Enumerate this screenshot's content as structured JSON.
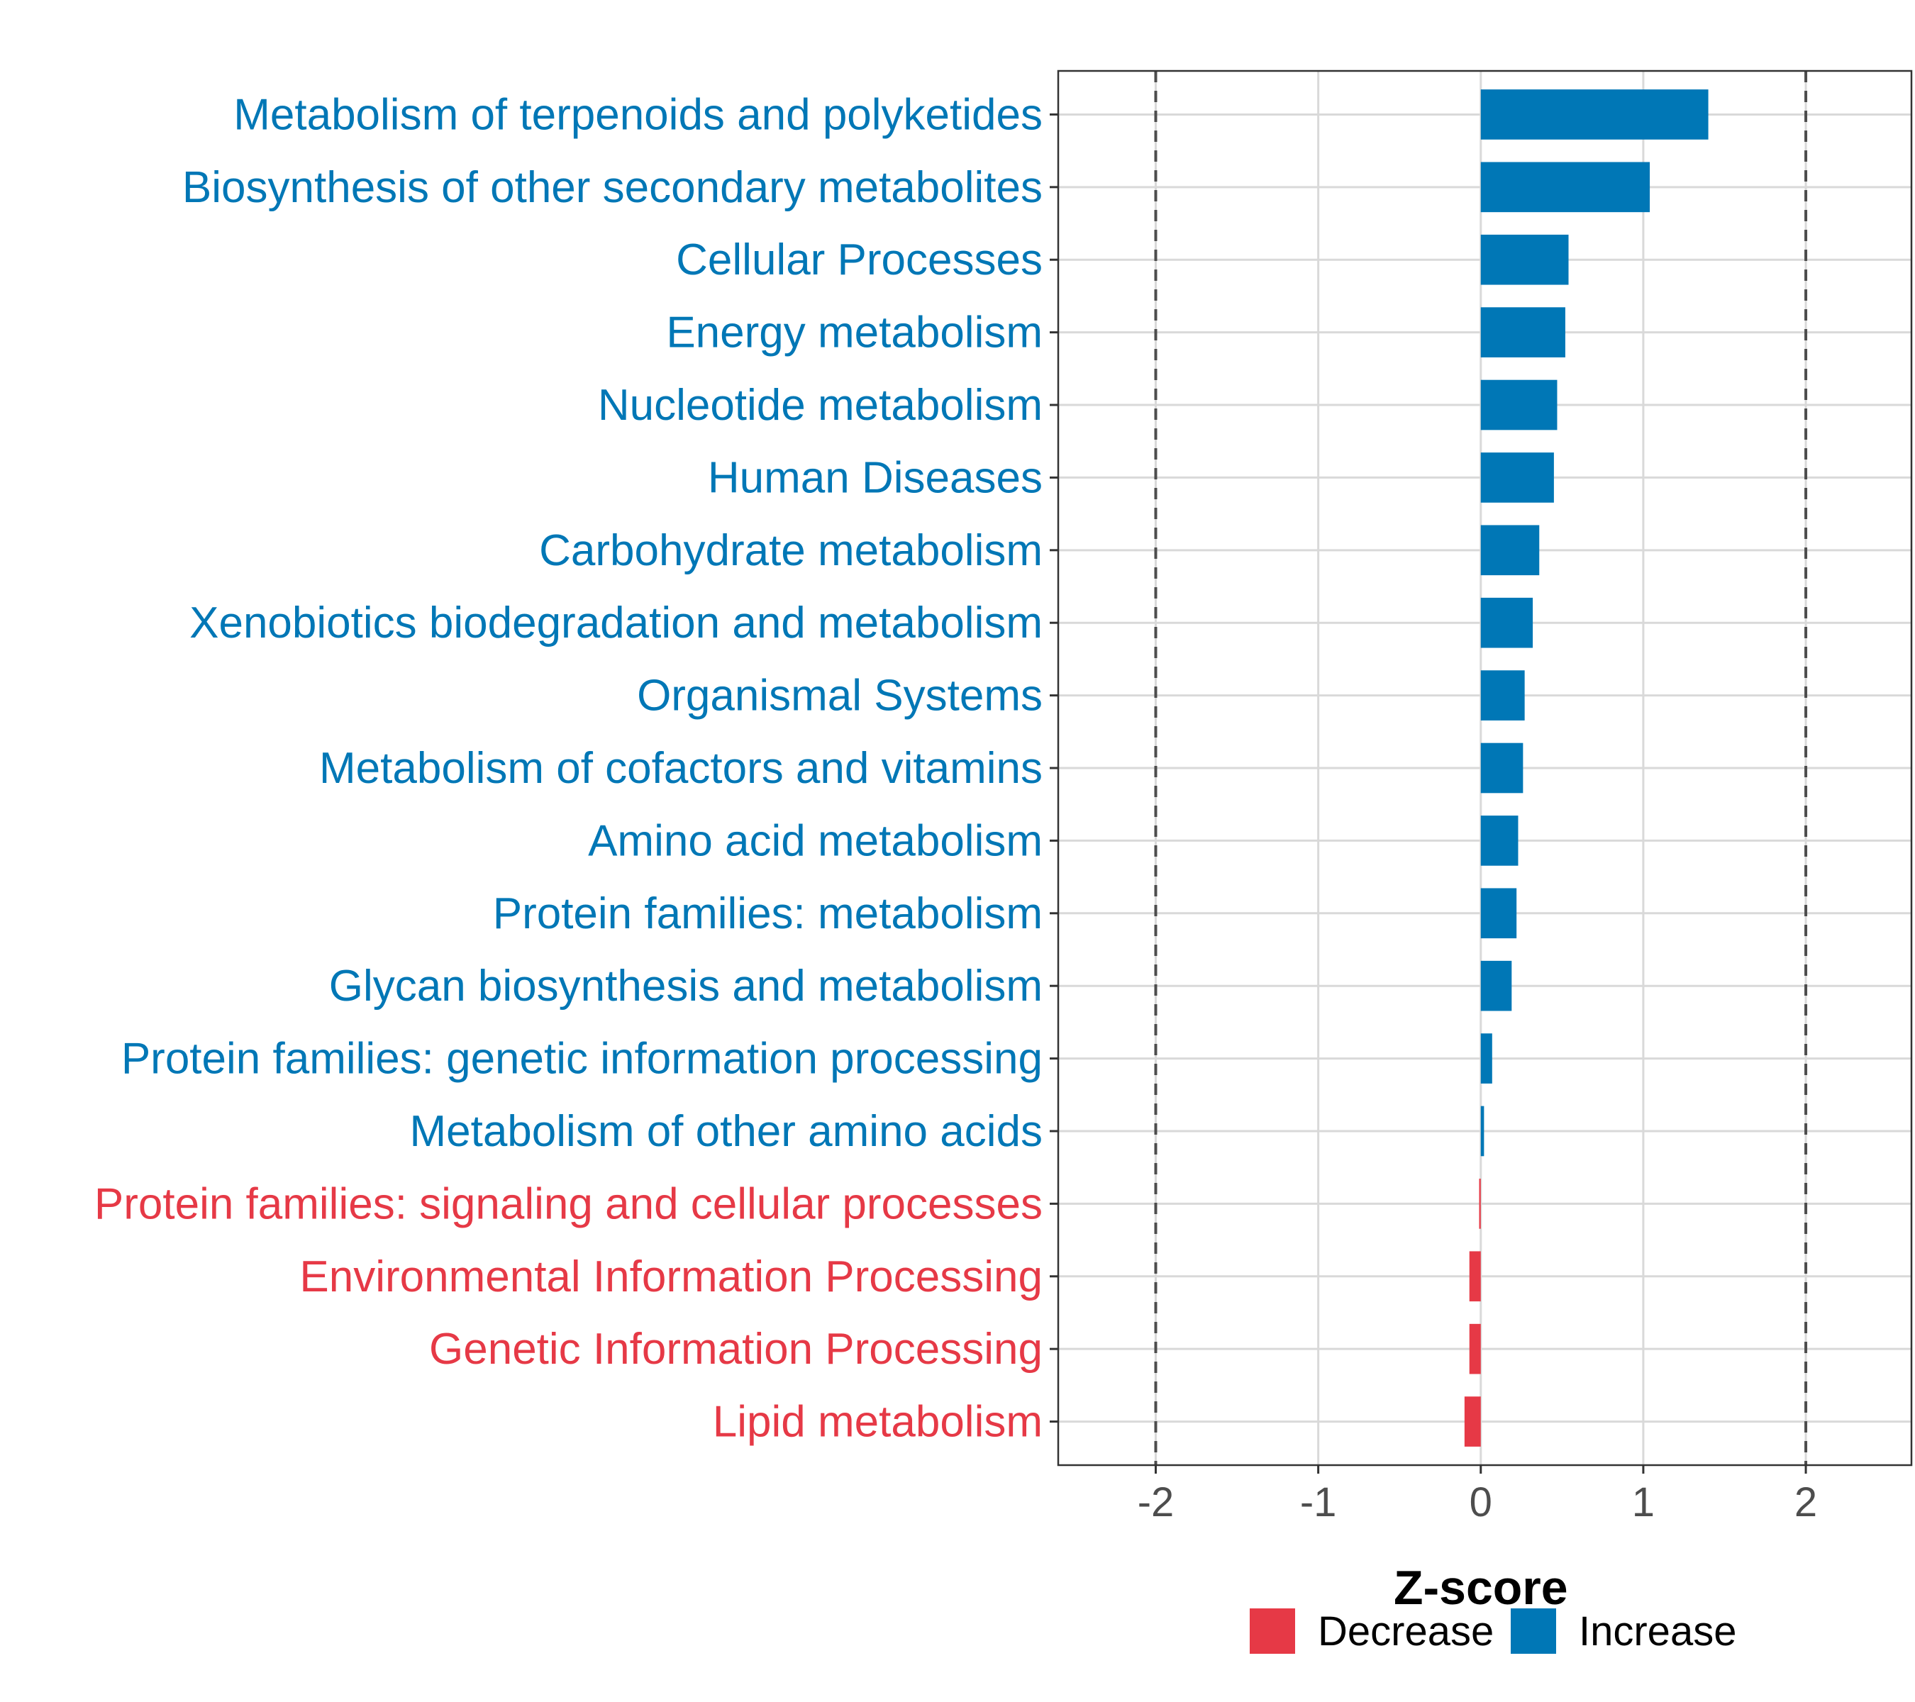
{
  "chart_data": {
    "type": "bar",
    "orientation": "horizontal",
    "xlabel": "Z-score",
    "xlim": [
      -2.6,
      2.65
    ],
    "xticks": [
      -2,
      -1,
      0,
      1,
      2
    ],
    "xtick_labels": [
      "-2",
      "-1",
      "0",
      "1",
      "2"
    ],
    "reference_lines": [
      -2,
      2
    ],
    "grid": true,
    "legend_position": "bottom",
    "colors": {
      "Decrease": "#E63946",
      "Increase": "#0077B6"
    },
    "categories": [
      "Metabolism of terpenoids and polyketides",
      "Biosynthesis of other secondary metabolites",
      "Cellular Processes",
      "Energy metabolism",
      "Nucleotide metabolism",
      "Human Diseases",
      "Carbohydrate metabolism",
      "Xenobiotics biodegradation and metabolism",
      "Organismal Systems",
      "Metabolism of cofactors and vitamins",
      "Amino acid metabolism",
      "Protein families: metabolism",
      "Glycan biosynthesis and metabolism",
      "Protein families: genetic information processing",
      "Metabolism of other amino acids",
      "Protein families: signaling and cellular processes",
      "Environmental Information Processing",
      "Genetic Information Processing",
      "Lipid metabolism"
    ],
    "values": [
      1.4,
      1.04,
      0.54,
      0.52,
      0.47,
      0.45,
      0.36,
      0.32,
      0.27,
      0.26,
      0.23,
      0.22,
      0.19,
      0.07,
      0.02,
      -0.01,
      -0.07,
      -0.07,
      -0.1
    ],
    "groups": [
      "Increase",
      "Increase",
      "Increase",
      "Increase",
      "Increase",
      "Increase",
      "Increase",
      "Increase",
      "Increase",
      "Increase",
      "Increase",
      "Increase",
      "Increase",
      "Increase",
      "Increase",
      "Decrease",
      "Decrease",
      "Decrease",
      "Decrease"
    ],
    "legend": [
      {
        "label": "Decrease",
        "color": "#E63946"
      },
      {
        "label": "Increase",
        "color": "#0077B6"
      }
    ]
  }
}
